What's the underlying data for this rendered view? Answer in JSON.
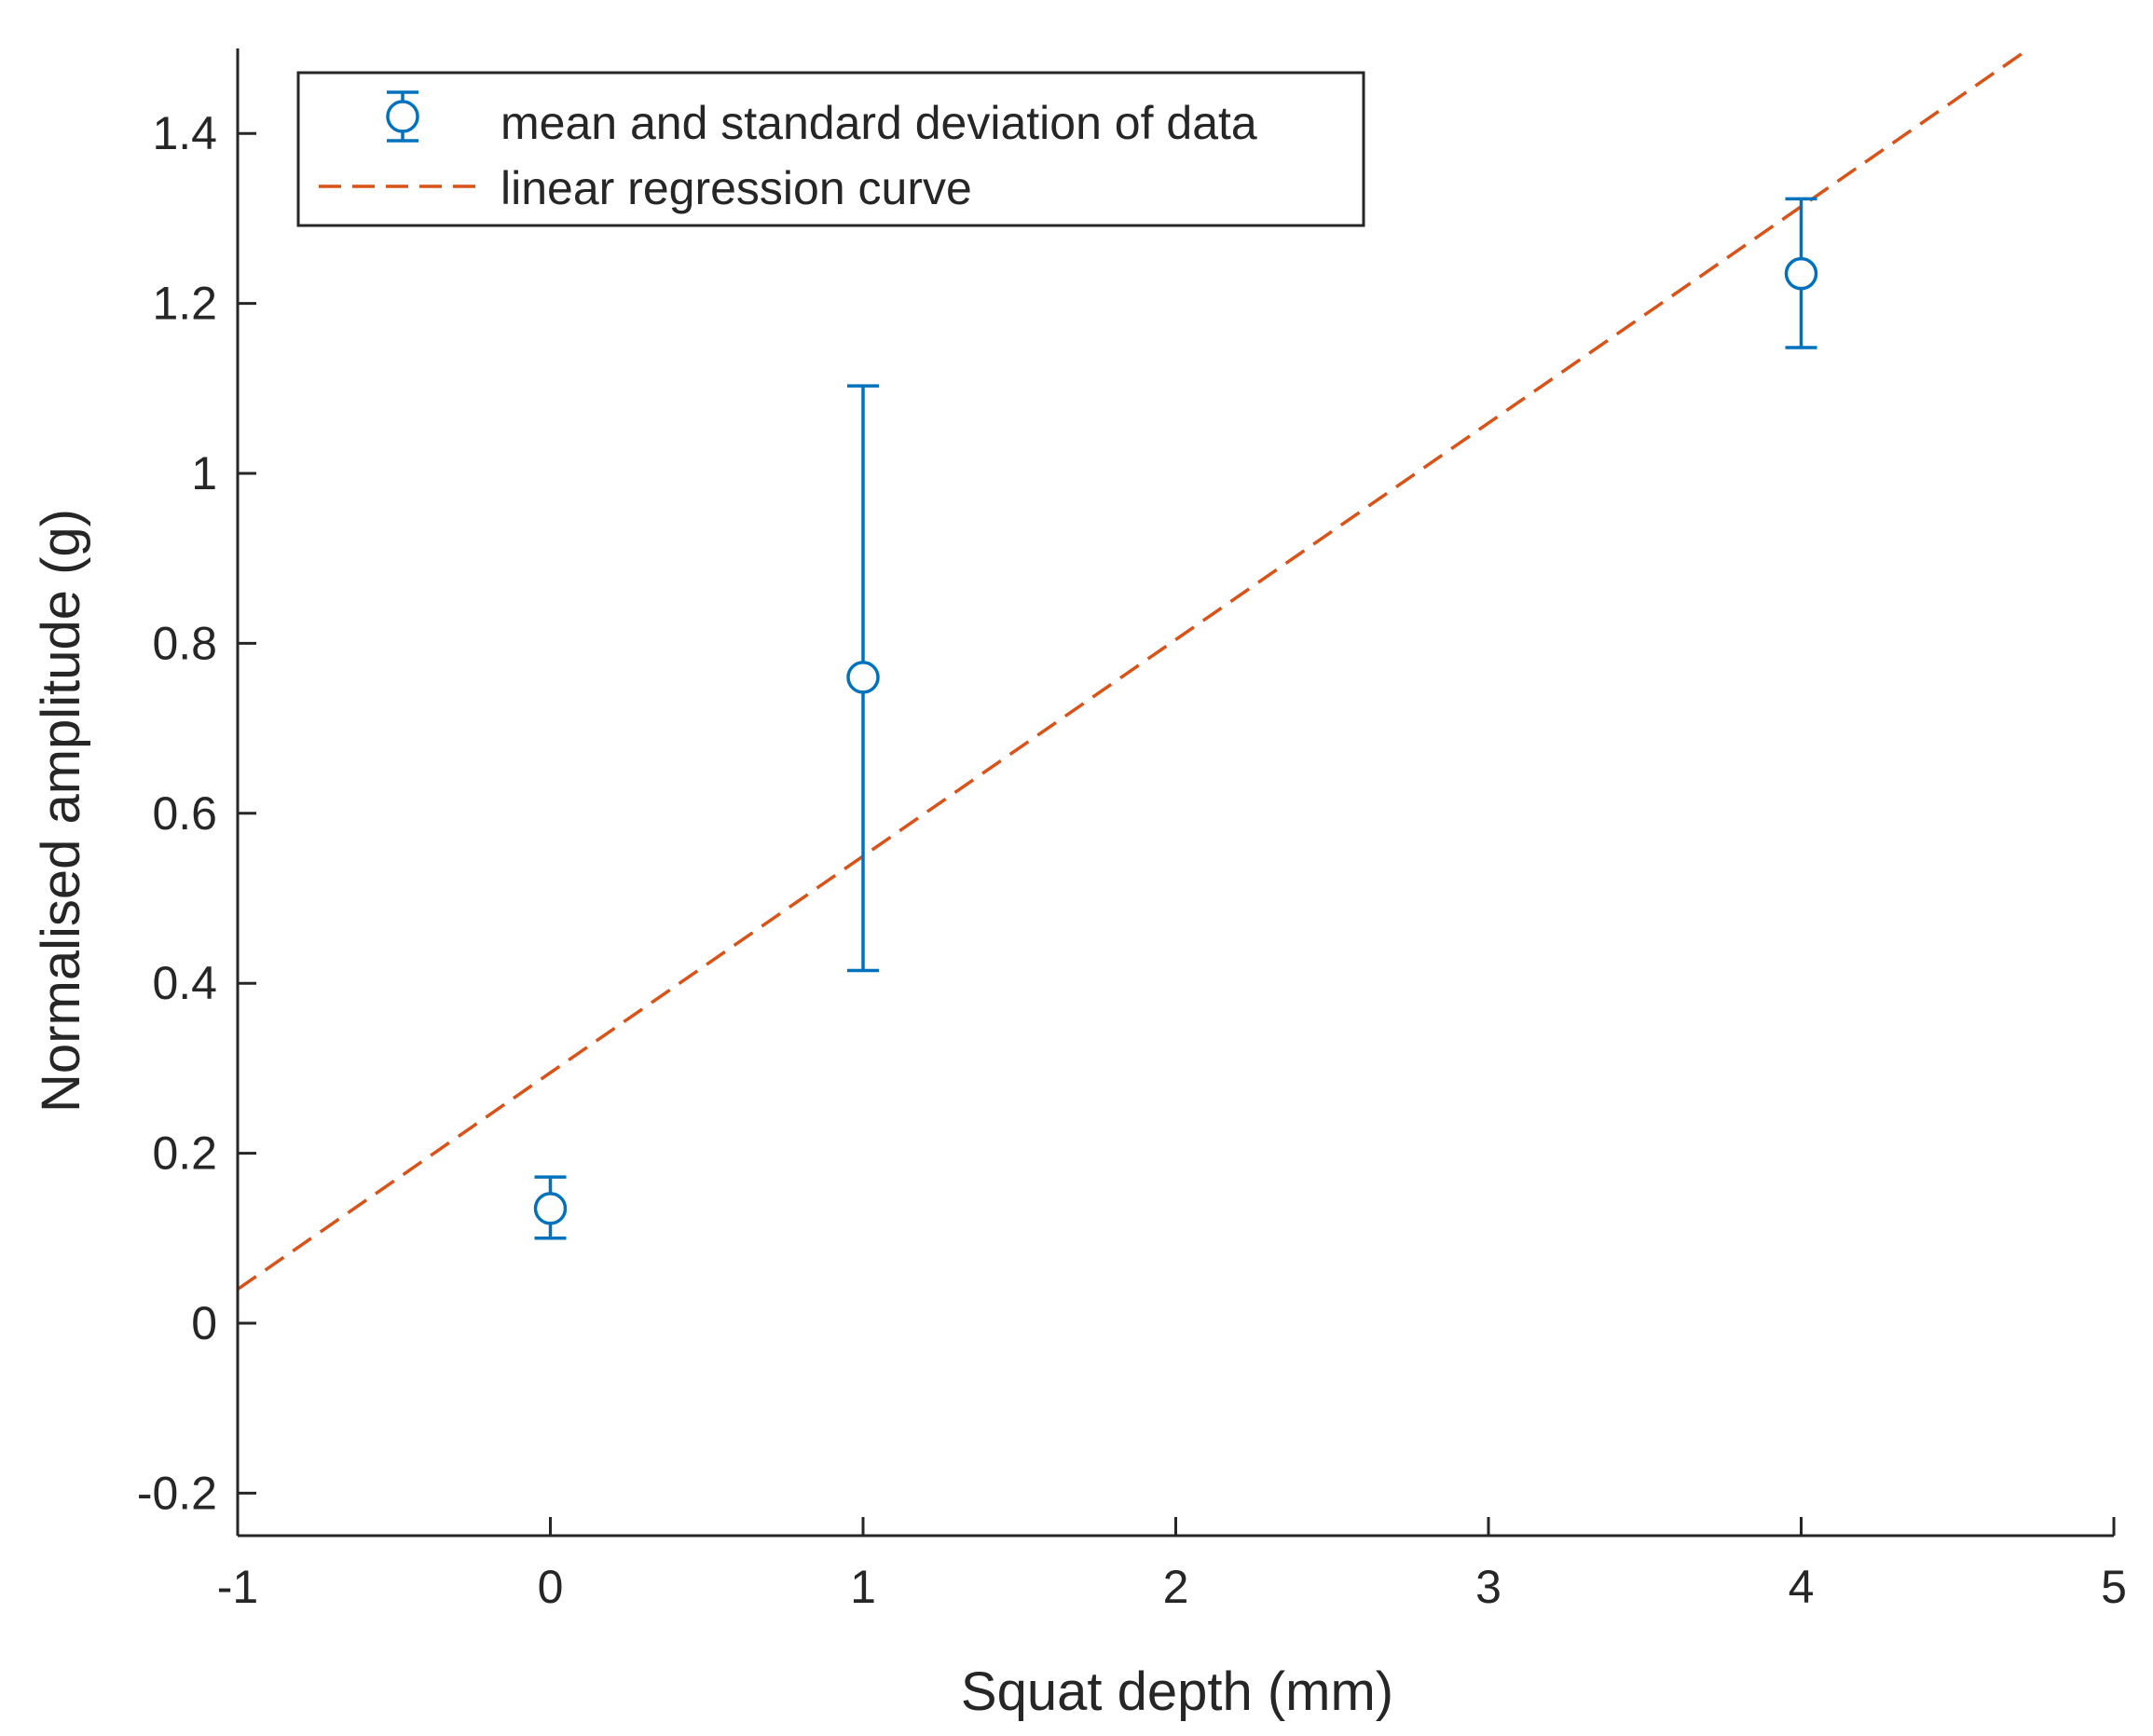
{
  "chart_data": {
    "type": "scatter",
    "title": "",
    "xlabel": "Squat depth (mm)",
    "ylabel": "Normalised amplitude (g)",
    "xlim": [
      -1,
      5
    ],
    "ylim": [
      -0.25,
      1.5
    ],
    "xticks": [
      -1,
      0,
      1,
      2,
      3,
      4,
      5
    ],
    "yticks": [
      -0.2,
      0,
      0.2,
      0.4,
      0.6,
      0.8,
      1,
      1.2,
      1.4
    ],
    "xtick_labels": [
      "-1",
      "0",
      "1",
      "2",
      "3",
      "4",
      "5"
    ],
    "ytick_labels": [
      "-0.2",
      "0",
      "0.2",
      "0.4",
      "0.6",
      "0.8",
      "1",
      "1.2",
      "1.4"
    ],
    "grid": false,
    "legend_position": "top-left",
    "series": [
      {
        "name": "mean and standard deviation of data",
        "kind": "errorbar",
        "color": "#0072BD",
        "marker": "circle",
        "x": [
          0,
          1,
          4
        ],
        "y": [
          0.135,
          0.76,
          1.235
        ],
        "lower": [
          0.1,
          0.415,
          1.148
        ],
        "upper": [
          0.172,
          1.103,
          1.323
        ]
      },
      {
        "name": "linear regression curve",
        "kind": "line",
        "color": "#D95319",
        "style": "dashed",
        "x": [
          -1,
          4.73
        ],
        "y": [
          0.04,
          1.5
        ]
      }
    ]
  }
}
